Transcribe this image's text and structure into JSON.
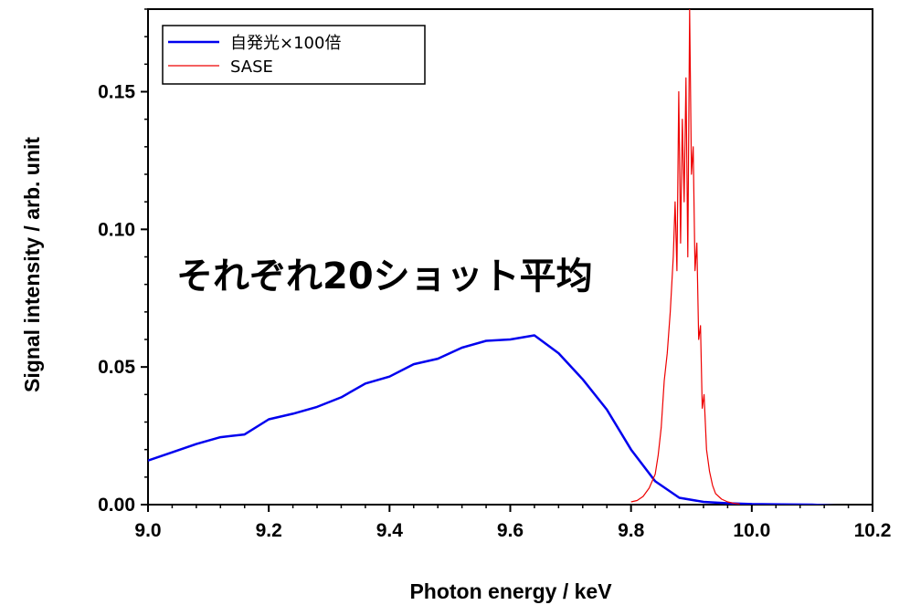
{
  "chart_data": {
    "type": "line",
    "xlabel": "Photon energy / keV",
    "ylabel": "Signal intensity / arb. unit",
    "xlim": [
      9.0,
      10.2
    ],
    "ylim": [
      0.0,
      0.18
    ],
    "x_ticks": [
      9.0,
      9.2,
      9.4,
      9.6,
      9.8,
      10.0,
      10.2
    ],
    "x_tick_labels": [
      "9.0",
      "9.2",
      "9.4",
      "9.6",
      "9.8",
      "10.0",
      "10.2"
    ],
    "y_ticks": [
      0.0,
      0.05,
      0.1,
      0.15
    ],
    "y_tick_labels": [
      "0.00",
      "0.05",
      "0.10",
      "0.15"
    ],
    "grid": false,
    "legend_position": "top-left",
    "annotation": "それぞれ20ショット平均",
    "series": [
      {
        "name": "自発光×100倍",
        "color": "#0000ee",
        "x": [
          9.0,
          9.04,
          9.08,
          9.12,
          9.16,
          9.2,
          9.24,
          9.28,
          9.32,
          9.36,
          9.4,
          9.44,
          9.48,
          9.52,
          9.56,
          9.6,
          9.64,
          9.68,
          9.72,
          9.76,
          9.8,
          9.84,
          9.88,
          9.92,
          9.96,
          10.0,
          10.05,
          10.1,
          10.15,
          10.2
        ],
        "values": [
          0.016,
          0.019,
          0.022,
          0.0245,
          0.0255,
          0.031,
          0.033,
          0.0355,
          0.039,
          0.044,
          0.0465,
          0.051,
          0.053,
          0.057,
          0.0595,
          0.06,
          0.0615,
          0.055,
          0.0455,
          0.0345,
          0.02,
          0.0085,
          0.0025,
          0.001,
          0.0005,
          0.0002,
          0.0001,
          0.0,
          -0.0005,
          -0.001
        ]
      },
      {
        "name": "SASE",
        "color": "#ee0000",
        "x": [
          9.8,
          9.81,
          9.82,
          9.83,
          9.84,
          9.845,
          9.85,
          9.855,
          9.86,
          9.865,
          9.87,
          9.873,
          9.876,
          9.879,
          9.882,
          9.885,
          9.888,
          9.891,
          9.894,
          9.897,
          9.9,
          9.903,
          9.906,
          9.909,
          9.912,
          9.915,
          9.918,
          9.921,
          9.925,
          9.93,
          9.935,
          9.94,
          9.95,
          9.96,
          9.97,
          9.98
        ],
        "values": [
          0.001,
          0.0015,
          0.003,
          0.006,
          0.011,
          0.018,
          0.028,
          0.045,
          0.055,
          0.07,
          0.09,
          0.11,
          0.085,
          0.15,
          0.095,
          0.14,
          0.11,
          0.155,
          0.09,
          0.18,
          0.12,
          0.13,
          0.085,
          0.095,
          0.06,
          0.065,
          0.035,
          0.04,
          0.02,
          0.012,
          0.007,
          0.004,
          0.002,
          0.001,
          0.0005,
          0.0002
        ]
      }
    ]
  }
}
